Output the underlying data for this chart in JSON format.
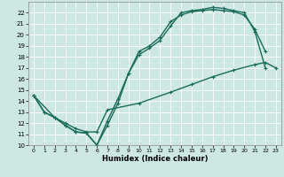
{
  "xlabel": "Humidex (Indice chaleur)",
  "xlim": [
    -0.5,
    23.5
  ],
  "ylim": [
    10,
    23
  ],
  "xticks": [
    0,
    1,
    2,
    3,
    4,
    5,
    6,
    7,
    8,
    9,
    10,
    11,
    12,
    13,
    14,
    15,
    16,
    17,
    18,
    19,
    20,
    21,
    22,
    23
  ],
  "yticks": [
    10,
    11,
    12,
    13,
    14,
    15,
    16,
    17,
    18,
    19,
    20,
    21,
    22
  ],
  "bg_color": "#cde8e2",
  "grid_color": "#b0d4cc",
  "line_color": "#1a6b5a",
  "line1_x": [
    0,
    1,
    2,
    3,
    4,
    5,
    6,
    7,
    8,
    9,
    10,
    11,
    12,
    13,
    14,
    15,
    16,
    17,
    18,
    19,
    20,
    21,
    22
  ],
  "line1_y": [
    14.5,
    13.0,
    12.5,
    11.8,
    11.2,
    11.1,
    10.0,
    11.8,
    13.8,
    16.5,
    18.5,
    19.0,
    19.8,
    21.2,
    21.8,
    22.1,
    22.2,
    22.3,
    22.2,
    22.1,
    21.8,
    20.5,
    18.5
  ],
  "line2_x": [
    0,
    1,
    2,
    3,
    4,
    5,
    6,
    7,
    8,
    9,
    10,
    11,
    12,
    13,
    14,
    15,
    16,
    17,
    18,
    19,
    20,
    21,
    22
  ],
  "line2_y": [
    14.5,
    13.0,
    12.5,
    11.8,
    11.2,
    11.1,
    10.0,
    12.2,
    14.2,
    16.5,
    18.2,
    18.8,
    19.5,
    20.8,
    22.0,
    22.2,
    22.3,
    22.5,
    22.4,
    22.2,
    22.0,
    20.3,
    17.0
  ],
  "line3_x": [
    0,
    2,
    3,
    4,
    5,
    6,
    7,
    10,
    13,
    15,
    17,
    19,
    21,
    22,
    23
  ],
  "line3_y": [
    14.5,
    12.5,
    12.0,
    11.5,
    11.2,
    11.2,
    13.2,
    13.8,
    14.8,
    15.5,
    16.2,
    16.8,
    17.3,
    17.5,
    17.0
  ],
  "markersize": 3.5,
  "linewidth": 1.0
}
